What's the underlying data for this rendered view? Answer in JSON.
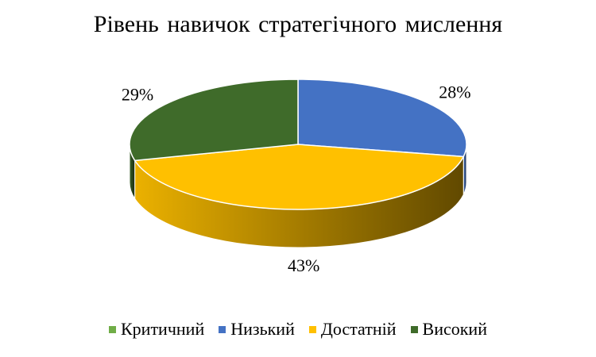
{
  "chart_data": {
    "type": "pie",
    "title": "Рівень навичок стратегічного мислення",
    "categories": [
      "Критичний",
      "Низький",
      "Достатній",
      "Високий"
    ],
    "values": [
      0,
      28,
      43,
      29
    ],
    "labels": [
      "",
      "28%",
      "43%",
      "29%"
    ],
    "colors": [
      "#70AD47",
      "#4472C4",
      "#FFC000",
      "#3F6B2A"
    ],
    "legend_position": "bottom",
    "style": "3d"
  }
}
